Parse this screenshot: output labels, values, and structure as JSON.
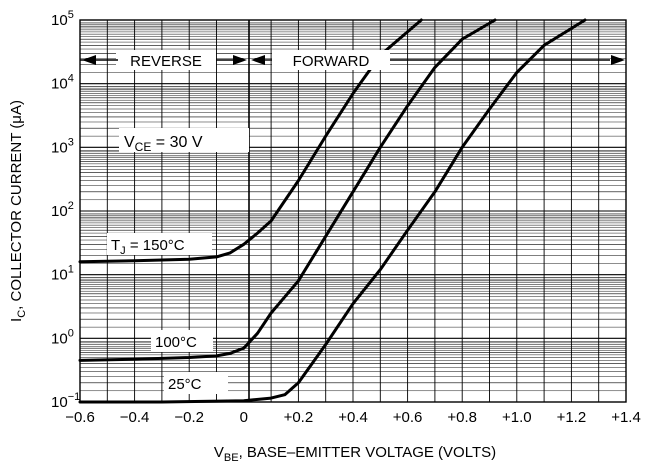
{
  "chart_data": {
    "type": "line",
    "title": "",
    "xlabel": {
      "main": "V",
      "sub": "BE",
      "rest": ", BASE–EMITTER VOLTAGE (VOLTS)"
    },
    "ylabel": {
      "main": "I",
      "sub": "C",
      "rest": ", COLLECTOR CURRENT (μA)"
    },
    "xlim": [
      -0.6,
      1.4
    ],
    "ylim_log10": [
      -1,
      5
    ],
    "y_scale": "log",
    "grid": true,
    "x_ticks": [
      -0.6,
      -0.4,
      -0.2,
      0,
      0.2,
      0.4,
      0.6,
      0.8,
      1.0,
      1.2,
      1.4
    ],
    "x_tick_labels": [
      "−0.6",
      "−0.4",
      "−0.2",
      "0",
      "+0.2",
      "+0.4",
      "+0.6",
      "+0.8",
      "+1.0",
      "+1.2",
      "+1.4"
    ],
    "y_ticks": [
      {
        "base": "10",
        "exp": "−1"
      },
      {
        "base": "10",
        "exp": "0"
      },
      {
        "base": "10",
        "exp": "1"
      },
      {
        "base": "10",
        "exp": "2"
      },
      {
        "base": "10",
        "exp": "3"
      },
      {
        "base": "10",
        "exp": "4"
      },
      {
        "base": "10",
        "exp": "5"
      }
    ],
    "series": [
      {
        "name": "T_J = 150°C",
        "x": [
          -0.6,
          -0.4,
          -0.2,
          -0.1,
          -0.05,
          0,
          0.05,
          0.1,
          0.2,
          0.3,
          0.4,
          0.5,
          0.65
        ],
        "y": [
          16,
          16.5,
          17.5,
          19,
          22,
          30,
          45,
          70,
          300,
          1500,
          7000,
          28000,
          100000
        ]
      },
      {
        "name": "100°C",
        "x": [
          -0.6,
          -0.4,
          -0.2,
          -0.1,
          -0.05,
          0,
          0.05,
          0.1,
          0.2,
          0.3,
          0.4,
          0.5,
          0.6,
          0.7,
          0.8,
          0.92
        ],
        "y": [
          0.45,
          0.47,
          0.5,
          0.53,
          0.58,
          0.7,
          1.2,
          2.5,
          8,
          40,
          200,
          1000,
          4500,
          18000,
          50000,
          100000
        ]
      },
      {
        "name": "25°C",
        "x": [
          -0.6,
          -0.3,
          0,
          0.1,
          0.15,
          0.2,
          0.3,
          0.4,
          0.5,
          0.6,
          0.7,
          0.8,
          0.9,
          1.0,
          1.1,
          1.25
        ],
        "y": [
          0.1,
          0.1,
          0.105,
          0.115,
          0.13,
          0.2,
          0.8,
          3.5,
          12,
          50,
          200,
          1000,
          4000,
          15000,
          40000,
          100000
        ]
      }
    ],
    "annotations": {
      "reverse": "REVERSE",
      "forward": "FORWARD",
      "vce": {
        "main": "V",
        "sub": "CE",
        "rest": " = 30 V"
      },
      "tj": {
        "main": "T",
        "sub": "J",
        "rest": " = 150°C"
      },
      "t100": "100°C",
      "t25": "25°C"
    }
  }
}
